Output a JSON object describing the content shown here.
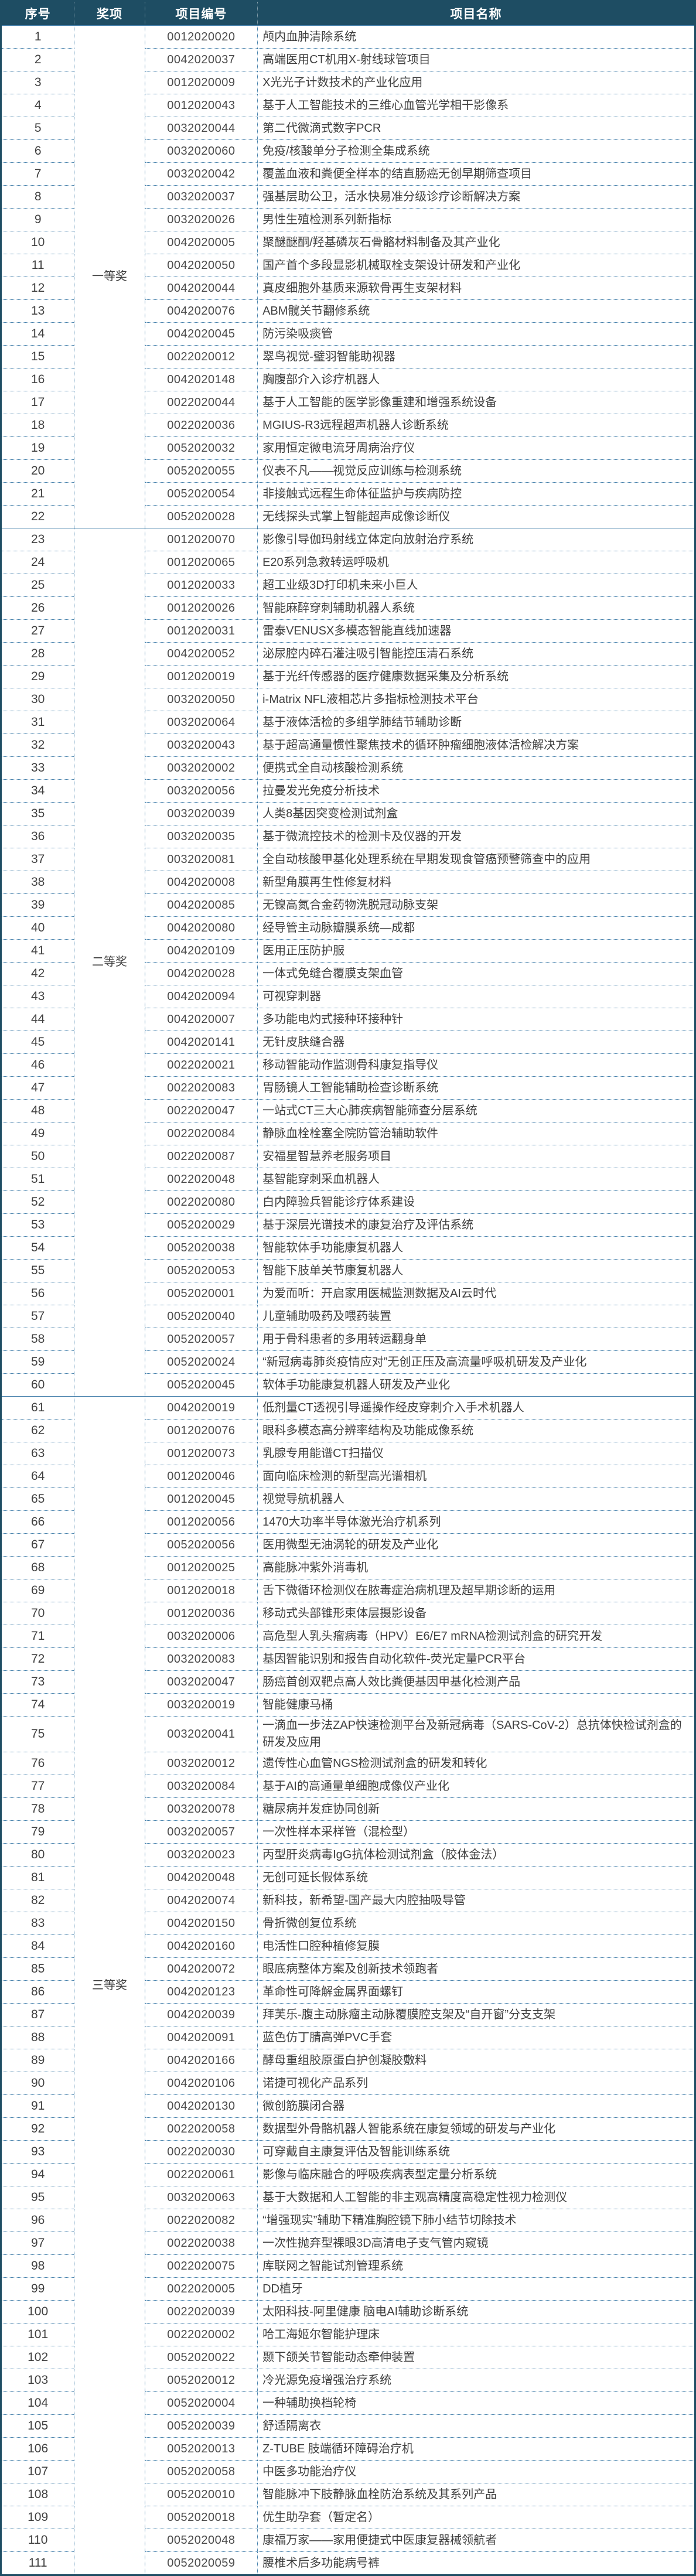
{
  "table": {
    "headers": {
      "serial": "序号",
      "award": "奖项",
      "code": "项目编号",
      "name": "项目名称"
    },
    "colors": {
      "header_bg": "#1E4D63",
      "header_text": "#FFFFFF",
      "grid_dotted": "#3F7CA8",
      "body_text": "#3F3F3F"
    },
    "groups": [
      {
        "award": "一等奖",
        "start": 1,
        "end": 22
      },
      {
        "award": "二等奖",
        "start": 23,
        "end": 60
      },
      {
        "award": "三等奖",
        "start": 61,
        "end": 111
      }
    ],
    "rows": [
      {
        "no": "1",
        "code": "0012020020",
        "name": "颅内血肿清除系统"
      },
      {
        "no": "2",
        "code": "0042020037",
        "name": "高端医用CT机用X-射线球管项目"
      },
      {
        "no": "3",
        "code": "0012020009",
        "name": "X光光子计数技术的产业化应用"
      },
      {
        "no": "4",
        "code": "0012020043",
        "name": "基于人工智能技术的三维心血管光学相干影像系"
      },
      {
        "no": "5",
        "code": "0032020044",
        "name": "第二代微滴式数字PCR"
      },
      {
        "no": "6",
        "code": "0032020060",
        "name": "免疫/核酸单分子检测全集成系统"
      },
      {
        "no": "7",
        "code": "0032020042",
        "name": "覆盖血液和粪便全样本的结直肠癌无创早期筛查项目"
      },
      {
        "no": "8",
        "code": "0032020037",
        "name": "强基层助公卫，活水快易准分级诊疗诊断解决方案"
      },
      {
        "no": "9",
        "code": "0032020026",
        "name": "男性生殖检测系列新指标"
      },
      {
        "no": "10",
        "code": "0042020005",
        "name": "聚醚醚酮/羟基磷灰石骨骼材料制备及其产业化"
      },
      {
        "no": "11",
        "code": "0042020050",
        "name": "国产首个多段显影机械取栓支架设计研发和产业化"
      },
      {
        "no": "12",
        "code": "0042020044",
        "name": "真皮细胞外基质来源软骨再生支架材料"
      },
      {
        "no": "13",
        "code": "0042020076",
        "name": "ABM髋关节翻修系统"
      },
      {
        "no": "14",
        "code": "0042020045",
        "name": "防污染吸痰管"
      },
      {
        "no": "15",
        "code": "0022020012",
        "name": "翠鸟视觉-璧羽智能助视器"
      },
      {
        "no": "16",
        "code": "0042020148",
        "name": "胸腹部介入诊疗机器人"
      },
      {
        "no": "17",
        "code": "0022020044",
        "name": "基于人工智能的医学影像重建和增强系统设备"
      },
      {
        "no": "18",
        "code": "0022020036",
        "name": "MGIUS-R3远程超声机器人诊断系统"
      },
      {
        "no": "19",
        "code": "0052020032",
        "name": "家用恒定微电流牙周病治疗仪"
      },
      {
        "no": "20",
        "code": "0052020055",
        "name": "仪表不凡——视觉反应训练与检测系统"
      },
      {
        "no": "21",
        "code": "0052020054",
        "name": "非接触式远程生命体征监护与疾病防控"
      },
      {
        "no": "22",
        "code": "0052020028",
        "name": "无线探头式掌上智能超声成像诊断仪"
      },
      {
        "no": "23",
        "code": "0012020070",
        "name": "影像引导伽玛射线立体定向放射治疗系统"
      },
      {
        "no": "24",
        "code": "0012020065",
        "name": "E20系列急救转运呼吸机"
      },
      {
        "no": "25",
        "code": "0012020033",
        "name": "超工业级3D打印机未来小巨人"
      },
      {
        "no": "26",
        "code": "0012020026",
        "name": "智能麻醉穿刺辅助机器人系统"
      },
      {
        "no": "27",
        "code": "0012020031",
        "name": "雷泰VENUSX多模态智能直线加速器"
      },
      {
        "no": "28",
        "code": "0042020052",
        "name": "泌尿腔内碎石灌注吸引智能控压清石系统"
      },
      {
        "no": "29",
        "code": "0012020019",
        "name": "基于光纤传感器的医疗健康数据采集及分析系统"
      },
      {
        "no": "30",
        "code": "0032020050",
        "name": "i-Matrix NFL液相芯片多指标检测技术平台"
      },
      {
        "no": "31",
        "code": "0032020064",
        "name": "基于液体活检的多组学肺结节辅助诊断"
      },
      {
        "no": "32",
        "code": "0032020043",
        "name": "基于超高通量惯性聚焦技术的循环肿瘤细胞液体活检解决方案"
      },
      {
        "no": "33",
        "code": "0032020002",
        "name": "便携式全自动核酸检测系统"
      },
      {
        "no": "34",
        "code": "0032020056",
        "name": "拉曼发光免疫分析技术"
      },
      {
        "no": "35",
        "code": "0032020039",
        "name": "人类8基因突变检测试剂盒"
      },
      {
        "no": "36",
        "code": "0032020035",
        "name": "基于微流控技术的检测卡及仪器的开发"
      },
      {
        "no": "37",
        "code": "0032020081",
        "name": "全自动核酸甲基化处理系统在早期发现食管癌预警筛查中的应用"
      },
      {
        "no": "38",
        "code": "0042020008",
        "name": "新型角膜再生性修复材料"
      },
      {
        "no": "39",
        "code": "0042020085",
        "name": "无镍高氮合金药物洗脱冠动脉支架"
      },
      {
        "no": "40",
        "code": "0042020080",
        "name": "经导管主动脉瓣膜系统—成都"
      },
      {
        "no": "41",
        "code": "0042020109",
        "name": "医用正压防护服"
      },
      {
        "no": "42",
        "code": "0042020028",
        "name": "一体式免缝合覆膜支架血管"
      },
      {
        "no": "43",
        "code": "0042020094",
        "name": "可视穿刺器"
      },
      {
        "no": "44",
        "code": "0042020007",
        "name": "多功能电灼式接种环接种针"
      },
      {
        "no": "45",
        "code": "0042020141",
        "name": "无针皮肤缝合器"
      },
      {
        "no": "46",
        "code": "0022020021",
        "name": "移动智能动作监测骨科康复指导仪"
      },
      {
        "no": "47",
        "code": "0022020083",
        "name": "胃肠镜人工智能辅助检查诊断系统"
      },
      {
        "no": "48",
        "code": "0022020047",
        "name": "一站式CT三大心肺疾病智能筛查分层系统"
      },
      {
        "no": "49",
        "code": "0022020084",
        "name": "静脉血栓栓塞全院防管治辅助软件"
      },
      {
        "no": "50",
        "code": "0022020087",
        "name": "安福星智慧养老服务项目"
      },
      {
        "no": "51",
        "code": "0022020048",
        "name": "基智能穿刺采血机器人"
      },
      {
        "no": "52",
        "code": "0022020080",
        "name": "白内障验兵智能诊疗体系建设"
      },
      {
        "no": "53",
        "code": "0052020029",
        "name": "基于深层光谱技术的康复治疗及评估系统"
      },
      {
        "no": "54",
        "code": "0052020038",
        "name": "智能软体手功能康复机器人"
      },
      {
        "no": "55",
        "code": "0052020053",
        "name": "智能下肢单关节康复机器人"
      },
      {
        "no": "56",
        "code": "0052020001",
        "name": "为爱而听：开启家用医械监测数据及AI云时代"
      },
      {
        "no": "57",
        "code": "0052020040",
        "name": "儿童辅助吸药及喂药装置"
      },
      {
        "no": "58",
        "code": "0052020057",
        "name": "用于骨科患者的多用转运翻身单"
      },
      {
        "no": "59",
        "code": "0052020024",
        "name": "“新冠病毒肺炎疫情应对”无创正压及高流量呼吸机研发及产业化"
      },
      {
        "no": "60",
        "code": "0052020045",
        "name": "软体手功能康复机器人研发及产业化"
      },
      {
        "no": "61",
        "code": "0042020019",
        "name": "低剂量CT透视引导遥操作经皮穿刺介入手术机器人"
      },
      {
        "no": "62",
        "code": "0012020076",
        "name": "眼科多模态高分辨率结构及功能成像系统"
      },
      {
        "no": "63",
        "code": "0012020073",
        "name": "乳腺专用能谱CT扫描仪"
      },
      {
        "no": "64",
        "code": "0012020046",
        "name": "面向临床检测的新型高光谱相机"
      },
      {
        "no": "65",
        "code": "0012020045",
        "name": "视觉导航机器人"
      },
      {
        "no": "66",
        "code": "0012020056",
        "name": "1470大功率半导体激光治疗机系列"
      },
      {
        "no": "67",
        "code": "0052020056",
        "name": "医用微型无油涡轮的研发及产业化"
      },
      {
        "no": "68",
        "code": "0012020025",
        "name": "高能脉冲紫外消毒机"
      },
      {
        "no": "69",
        "code": "0012020018",
        "name": "舌下微循环检测仪在脓毒症治病机理及超早期诊断的运用"
      },
      {
        "no": "70",
        "code": "0012020036",
        "name": "移动式头部锥形束体层摄影设备"
      },
      {
        "no": "71",
        "code": "0032020006",
        "name": "高危型人乳头瘤病毒（HPV）E6/E7 mRNA检测试剂盒的研究开发"
      },
      {
        "no": "72",
        "code": "0032020083",
        "name": "基因智能识别和报告自动化软件-荧光定量PCR平台"
      },
      {
        "no": "73",
        "code": "0032020047",
        "name": "肠癌首创双靶点高人效比粪便基因甲基化检测产品"
      },
      {
        "no": "74",
        "code": "0032020019",
        "name": "智能健康马桶"
      },
      {
        "no": "75",
        "code": "0032020041",
        "name": "一滴血一步法ZAP快速检测平台及新冠病毒（SARS-CoV-2）总抗体快检试剂盒的研发及应用"
      },
      {
        "no": "76",
        "code": "0032020012",
        "name": "遗传性心血管NGS检测试剂盒的研发和转化"
      },
      {
        "no": "77",
        "code": "0032020084",
        "name": "基于AI的高通量单细胞成像仪产业化"
      },
      {
        "no": "78",
        "code": "0032020078",
        "name": "糖尿病并发症协同创新"
      },
      {
        "no": "79",
        "code": "0032020057",
        "name": "一次性样本采样管（混检型）"
      },
      {
        "no": "80",
        "code": "0032020023",
        "name": "丙型肝炎病毒IgG抗体检测试剂盒（胶体金法）"
      },
      {
        "no": "81",
        "code": "0042020048",
        "name": "无创可延长假体系统"
      },
      {
        "no": "82",
        "code": "0042020074",
        "name": "新科技，新希望-国产最大内腔抽吸导管"
      },
      {
        "no": "83",
        "code": "0042020150",
        "name": "骨折微创复位系统"
      },
      {
        "no": "84",
        "code": "0042020160",
        "name": "电活性口腔种植修复膜"
      },
      {
        "no": "85",
        "code": "0042020072",
        "name": "眼底病整体方案及创新技术领跑者"
      },
      {
        "no": "86",
        "code": "0042020123",
        "name": "革命性可降解金属界面螺钉"
      },
      {
        "no": "87",
        "code": "0042020039",
        "name": "拜芙乐-腹主动脉瘤主动脉覆膜腔支架及“自开窗”分支支架"
      },
      {
        "no": "88",
        "code": "0042020091",
        "name": "蓝色仿丁腈高弹PVC手套"
      },
      {
        "no": "89",
        "code": "0042020166",
        "name": "酵母重组胶原蛋白护创凝胶敷料"
      },
      {
        "no": "90",
        "code": "0042020106",
        "name": "诺捷可视化产品系列"
      },
      {
        "no": "91",
        "code": "0042020130",
        "name": "微创筋膜闭合器"
      },
      {
        "no": "92",
        "code": "0022020058",
        "name": "数据型外骨骼机器人智能系统在康复领域的研发与产业化"
      },
      {
        "no": "93",
        "code": "0022020030",
        "name": "可穿戴自主康复评估及智能训练系统"
      },
      {
        "no": "94",
        "code": "0022020061",
        "name": "影像与临床融合的呼吸疾病表型定量分析系统"
      },
      {
        "no": "95",
        "code": "0032020063",
        "name": "基于大数据和人工智能的非主观高精度高稳定性视力检测仪"
      },
      {
        "no": "96",
        "code": "0022020082",
        "name": "“增强现实”辅助下精准胸腔镜下肺小结节切除技术"
      },
      {
        "no": "97",
        "code": "0022020038",
        "name": "一次性抛弃型裸眼3D高清电子支气管内窥镜"
      },
      {
        "no": "98",
        "code": "0022020075",
        "name": "库联网之智能试剂管理系统"
      },
      {
        "no": "99",
        "code": "0022020005",
        "name": "DD植牙"
      },
      {
        "no": "100",
        "code": "0022020039",
        "name": "太阳科技-阿里健康 脑电AI辅助诊断系统"
      },
      {
        "no": "101",
        "code": "0022020002",
        "name": "哈工海姬尔智能护理床"
      },
      {
        "no": "102",
        "code": "0052020022",
        "name": "颞下颌关节智能动态牵伸装置"
      },
      {
        "no": "103",
        "code": "0052020012",
        "name": "冷光源免疫增强治疗系统"
      },
      {
        "no": "104",
        "code": "0052020004",
        "name": "一种辅助换档轮椅"
      },
      {
        "no": "105",
        "code": "0052020039",
        "name": "舒适隔离衣"
      },
      {
        "no": "106",
        "code": "0052020013",
        "name": "Z-TUBE 肢端循环障碍治疗机"
      },
      {
        "no": "107",
        "code": "0052020058",
        "name": "中医多功能治疗仪"
      },
      {
        "no": "108",
        "code": "0052020010",
        "name": "智能脉冲下肢静脉血栓防治系统及其系列产品"
      },
      {
        "no": "109",
        "code": "0052020018",
        "name": "优生助孕套（暂定名）"
      },
      {
        "no": "110",
        "code": "0052020048",
        "name": "康福万家——家用便捷式中医康复器械领航者"
      },
      {
        "no": "111",
        "code": "0052020059",
        "name": "腰椎术后多功能病号裤"
      }
    ]
  }
}
